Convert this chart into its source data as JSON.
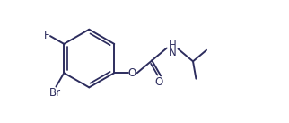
{
  "bg_color": "#ffffff",
  "bond_color": "#2d2d5e",
  "line_width": 1.4,
  "font_size": 8.5,
  "fig_width": 3.22,
  "fig_height": 1.37,
  "dpi": 100,
  "label_F": "F",
  "label_Br": "Br",
  "label_O": "O",
  "label_O2": "O",
  "label_NH": "H\nN"
}
